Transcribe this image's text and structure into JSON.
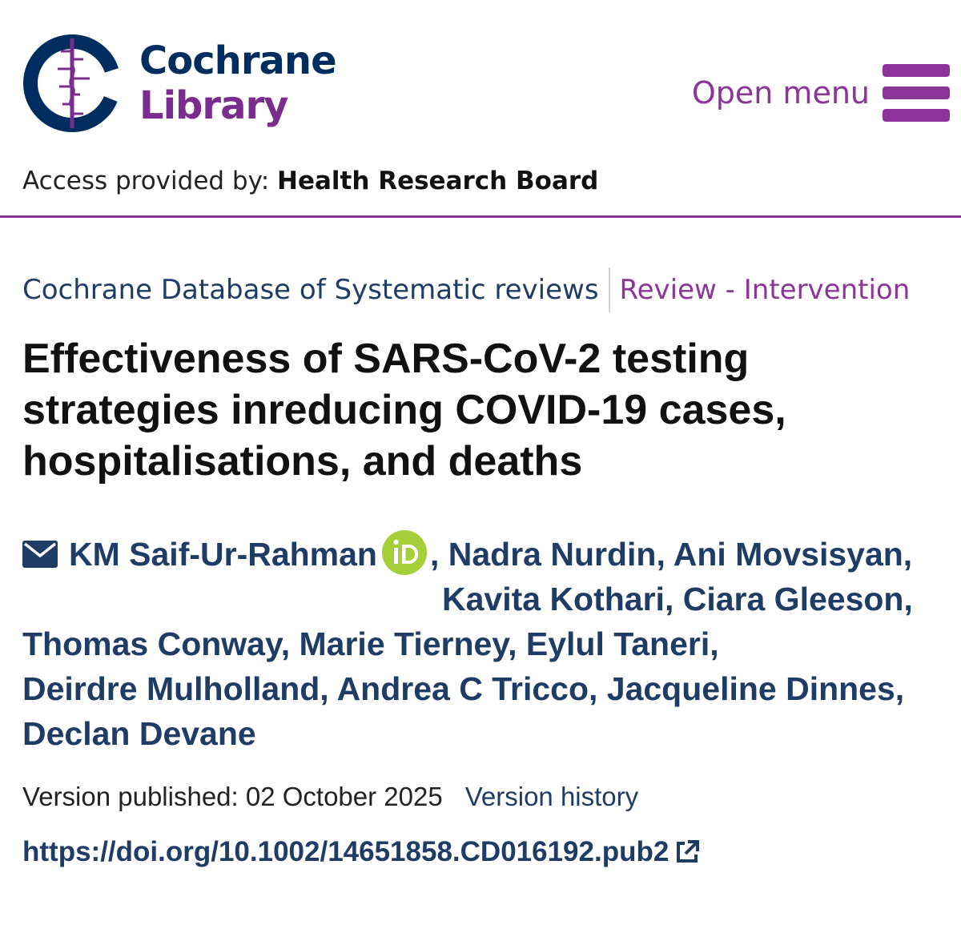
{
  "header": {
    "logo_line1": "Cochrane",
    "logo_line2": "Library",
    "menu_label": "Open menu",
    "access_prefix": "Access provided by: ",
    "access_org": "Health Research Board"
  },
  "breadcrumb": {
    "database": "Cochrane Database of Systematic reviews",
    "review_type": "Review - Intervention"
  },
  "article": {
    "title": "Effectiveness of SARS-CoV-2 testing strategies inreducing COVID-19 cases, hospitalisations, and deaths",
    "authors": {
      "first": "KM Saif-Ur-Rahman",
      "line1_rest": ", Nadra Nurdin, Ani Movsisyan,",
      "line2": "Kavita Kothari, Ciara Gleeson,",
      "line3": "Thomas Conway, Marie Tierney, Eylul Taneri,",
      "line4": "Deirdre Mulholland, Andrea C Tricco, Jacqueline Dinnes,",
      "line5": "Declan Devane"
    },
    "version_published": "Version published: 02 October 2025",
    "version_history": "Version history",
    "doi": "https://doi.org/10.1002/14651858.CD016192.pub2"
  },
  "icons": {
    "logo": "cochrane-logo-icon",
    "menu": "hamburger-menu-icon",
    "mail": "envelope-icon",
    "orcid": "orcid-icon",
    "external": "external-link-icon"
  },
  "colors": {
    "navy": "#1f3c66",
    "brand_navy": "#002d5f",
    "purple": "#8a3597",
    "orcid_green": "#a6ce39"
  }
}
